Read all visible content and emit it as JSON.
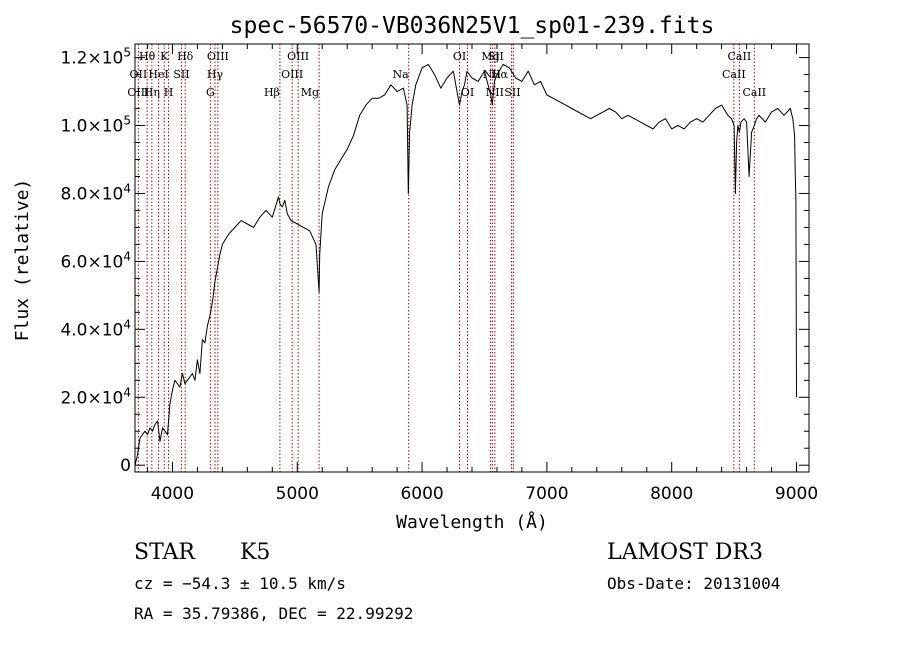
{
  "chart_data": {
    "type": "line",
    "title": "spec-56570-VB036N25V1_sp01-239.fits",
    "xlabel": "Wavelength (Å)",
    "ylabel": "Flux (relative)",
    "xlim": [
      3700,
      9100
    ],
    "ylim": [
      -2000,
      124000
    ],
    "x_ticks": [
      {
        "value": 4000,
        "label": "4000"
      },
      {
        "value": 5000,
        "label": "5000"
      },
      {
        "value": 6000,
        "label": "6000"
      },
      {
        "value": 7000,
        "label": "7000"
      },
      {
        "value": 8000,
        "label": "8000"
      },
      {
        "value": 9000,
        "label": "9000"
      }
    ],
    "y_ticks": [
      {
        "value": 0,
        "mantissa": "0",
        "exp": ""
      },
      {
        "value": 20000,
        "mantissa": "2.0×10",
        "exp": "4"
      },
      {
        "value": 40000,
        "mantissa": "4.0×10",
        "exp": "4"
      },
      {
        "value": 60000,
        "mantissa": "6.0×10",
        "exp": "4"
      },
      {
        "value": 80000,
        "mantissa": "8.0×10",
        "exp": "4"
      },
      {
        "value": 100000,
        "mantissa": "1.0×10",
        "exp": "5"
      },
      {
        "value": 120000,
        "mantissa": "1.2×10",
        "exp": "5"
      }
    ],
    "line_color": "#000000",
    "marker_color": "#b00000",
    "series": [
      {
        "x": [
          3700,
          3720,
          3740,
          3760,
          3780,
          3800,
          3820,
          3840,
          3860,
          3880,
          3900,
          3920,
          3940,
          3960,
          3980,
          4000,
          4020,
          4040,
          4060,
          4080,
          4100,
          4120,
          4140,
          4160,
          4180,
          4200,
          4220,
          4240,
          4260,
          4280,
          4300,
          4320,
          4340,
          4360,
          4380,
          4400,
          4450,
          4500,
          4550,
          4600,
          4650,
          4700,
          4750,
          4800,
          4850,
          4861,
          4880,
          4900,
          4920,
          4950,
          5000,
          5050,
          5100,
          5150,
          5175,
          5180,
          5200,
          5250,
          5300,
          5350,
          5400,
          5450,
          5500,
          5550,
          5600,
          5650,
          5700,
          5750,
          5800,
          5850,
          5880,
          5890,
          5900,
          5920,
          5950,
          6000,
          6050,
          6100,
          6150,
          6200,
          6250,
          6300,
          6320,
          6340,
          6360,
          6400,
          6450,
          6500,
          6550,
          6563,
          6580,
          6600,
          6650,
          6700,
          6750,
          6800,
          6850,
          6900,
          6950,
          7000,
          7050,
          7100,
          7150,
          7200,
          7250,
          7300,
          7350,
          7400,
          7450,
          7500,
          7550,
          7600,
          7650,
          7700,
          7750,
          7800,
          7850,
          7900,
          7950,
          8000,
          8050,
          8100,
          8150,
          8200,
          8250,
          8300,
          8350,
          8400,
          8450,
          8480,
          8500,
          8510,
          8520,
          8530,
          8542,
          8555,
          8580,
          8600,
          8620,
          8640,
          8662,
          8680,
          8700,
          8750,
          8800,
          8850,
          8900,
          8950,
          8970,
          8985,
          8990,
          8995,
          9000
        ],
        "y": [
          0,
          3000,
          8000,
          9000,
          10000,
          9000,
          11000,
          10000,
          12000,
          13000,
          7000,
          11000,
          10000,
          9000,
          18000,
          22000,
          25000,
          24000,
          23000,
          27000,
          24000,
          25000,
          26000,
          27000,
          25000,
          31000,
          27000,
          37000,
          36000,
          41000,
          44000,
          48000,
          54000,
          58000,
          62000,
          65000,
          68000,
          70000,
          72000,
          71000,
          70000,
          73000,
          75000,
          73000,
          79000,
          77000,
          76000,
          78000,
          74000,
          72000,
          71000,
          70000,
          69000,
          65000,
          51000,
          62000,
          74000,
          82000,
          87000,
          90000,
          93000,
          97000,
          103000,
          106000,
          108000,
          108000,
          109000,
          112000,
          110000,
          111000,
          106000,
          80000,
          98000,
          106000,
          112000,
          117000,
          118000,
          115000,
          111000,
          114000,
          116000,
          106000,
          110000,
          112000,
          116000,
          114000,
          113000,
          116000,
          109000,
          106000,
          113000,
          115000,
          118000,
          117000,
          114000,
          113000,
          116000,
          112000,
          113000,
          109000,
          108000,
          107000,
          106000,
          105000,
          104000,
          103000,
          102000,
          103000,
          104000,
          105000,
          104000,
          102000,
          103000,
          102000,
          101000,
          100000,
          99000,
          101000,
          102000,
          99000,
          100000,
          99000,
          101000,
          102000,
          101000,
          103000,
          105000,
          106000,
          103000,
          102000,
          100000,
          80000,
          95000,
          100000,
          98000,
          101000,
          102000,
          101000,
          85000,
          98000,
          100000,
          102000,
          103000,
          101000,
          104000,
          105000,
          103000,
          105000,
          102000,
          97000,
          85000,
          78000,
          20000
        ]
      }
    ],
    "lines": [
      {
        "wavelength": 3727,
        "label": "OII"
      },
      {
        "wavelength": 3797,
        "label": "Hθ"
      },
      {
        "wavelength": 3835,
        "label": "Hη"
      },
      {
        "wavelength": 3889,
        "label": "HeI"
      },
      {
        "wavelength": 3934,
        "label": "K"
      },
      {
        "wavelength": 3969,
        "label": "H"
      },
      {
        "wavelength": 4072,
        "label": "SII"
      },
      {
        "wavelength": 4102,
        "label": "Hδ"
      },
      {
        "wavelength": 4304,
        "label": "G"
      },
      {
        "wavelength": 4341,
        "label": "Hγ"
      },
      {
        "wavelength": 4364,
        "label": "OIII"
      },
      {
        "wavelength": 4861,
        "label": "Hβ"
      },
      {
        "wavelength": 4959,
        "label": "OIII"
      },
      {
        "wavelength": 5007,
        "label": "OIII"
      },
      {
        "wavelength": 5175,
        "label": "Mg"
      },
      {
        "wavelength": 5893,
        "label": "Na"
      },
      {
        "wavelength": 6300,
        "label": "OI"
      },
      {
        "wavelength": 6364,
        "label": "OI"
      },
      {
        "wavelength": 6548,
        "label": "NII"
      },
      {
        "wavelength": 6563,
        "label": "Hα"
      },
      {
        "wavelength": 6583,
        "label": "NII"
      },
      {
        "wavelength": 6717,
        "label": "SII"
      },
      {
        "wavelength": 6731,
        "label": "SII"
      },
      {
        "wavelength": 8498,
        "label": "CaII"
      },
      {
        "wavelength": 8542,
        "label": "CaII"
      },
      {
        "wavelength": 8662,
        "label": "CaII"
      }
    ],
    "line_label_texts": [
      {
        "text": "Hθ",
        "wavelength": 3797,
        "row": 1,
        "anchor": "middle"
      },
      {
        "text": "K",
        "wavelength": 3934,
        "row": 1,
        "anchor": "middle"
      },
      {
        "text": "Hδ",
        "wavelength": 4102,
        "row": 1,
        "anchor": "middle"
      },
      {
        "text": "OIII",
        "wavelength": 4364,
        "row": 1,
        "anchor": "middle"
      },
      {
        "text": "OIII",
        "wavelength": 5007,
        "row": 1,
        "anchor": "middle"
      },
      {
        "text": "OI",
        "wavelength": 6300,
        "row": 1,
        "anchor": "middle"
      },
      {
        "text": "Mg",
        "wavelength": 6548,
        "row": 1,
        "anchor": "middle"
      },
      {
        "text": "SII",
        "wavelength": 6590,
        "row": 1,
        "anchor": "middle"
      },
      {
        "text": "CaII",
        "wavelength": 8542,
        "row": 1,
        "anchor": "middle"
      },
      {
        "text": "OII",
        "wavelength": 3727,
        "row": 2,
        "anchor": "middle"
      },
      {
        "text": "HeI",
        "wavelength": 3889,
        "row": 2,
        "anchor": "middle"
      },
      {
        "text": "SII",
        "wavelength": 4072,
        "row": 2,
        "anchor": "middle"
      },
      {
        "text": "Hγ",
        "wavelength": 4341,
        "row": 2,
        "anchor": "middle"
      },
      {
        "text": "OIII",
        "wavelength": 4959,
        "row": 2,
        "anchor": "middle"
      },
      {
        "text": "Na",
        "wavelength": 5893,
        "row": 2,
        "anchor": "end"
      },
      {
        "text": "NII",
        "wavelength": 6560,
        "row": 2,
        "anchor": "middle"
      },
      {
        "text": "Hα",
        "wavelength": 6620,
        "row": 2,
        "anchor": "middle"
      },
      {
        "text": "CaII",
        "wavelength": 8498,
        "row": 2,
        "anchor": "middle"
      },
      {
        "text": "OIII",
        "wavelength": 3727,
        "row": 3,
        "anchor": "middle"
      },
      {
        "text": "Hη",
        "wavelength": 3835,
        "row": 3,
        "anchor": "middle"
      },
      {
        "text": "H",
        "wavelength": 3969,
        "row": 3,
        "anchor": "middle"
      },
      {
        "text": "G",
        "wavelength": 4304,
        "row": 3,
        "anchor": "middle"
      },
      {
        "text": "Hβ",
        "wavelength": 4861,
        "row": 3,
        "anchor": "end"
      },
      {
        "text": "Mg",
        "wavelength": 5175,
        "row": 3,
        "anchor": "end"
      },
      {
        "text": "OI",
        "wavelength": 6364,
        "row": 3,
        "anchor": "middle"
      },
      {
        "text": "NII",
        "wavelength": 6583,
        "row": 3,
        "anchor": "middle"
      },
      {
        "text": "SII",
        "wavelength": 6724,
        "row": 3,
        "anchor": "middle"
      },
      {
        "text": "CaII",
        "wavelength": 8662,
        "row": 3,
        "anchor": "middle"
      }
    ]
  },
  "info": {
    "class": "STAR",
    "subclass": "K5",
    "survey": "LAMOST DR3",
    "redshift": "cz = −54.3 ± 10.5 km/s",
    "obs_date": "Obs-Date: 20131004",
    "coords": "RA =  35.79386, DEC =  22.99292"
  }
}
